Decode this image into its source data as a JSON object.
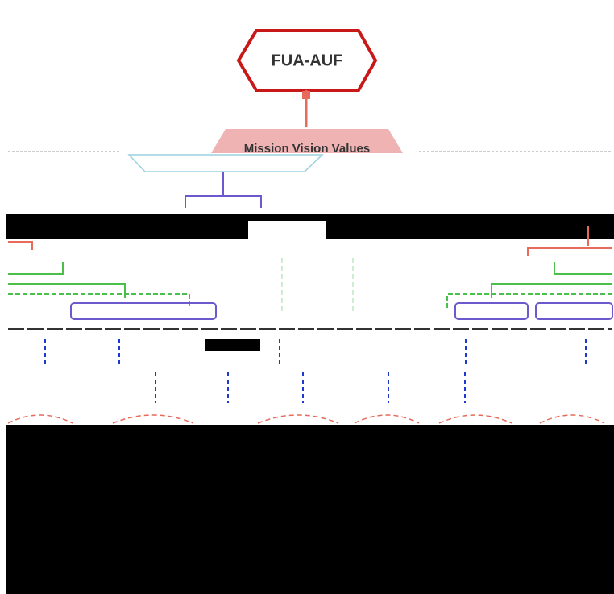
{
  "header": {
    "title": "FUA-AUF"
  },
  "nodes": [
    {
      "label": "Mission Vision Values"
    }
  ]
}
